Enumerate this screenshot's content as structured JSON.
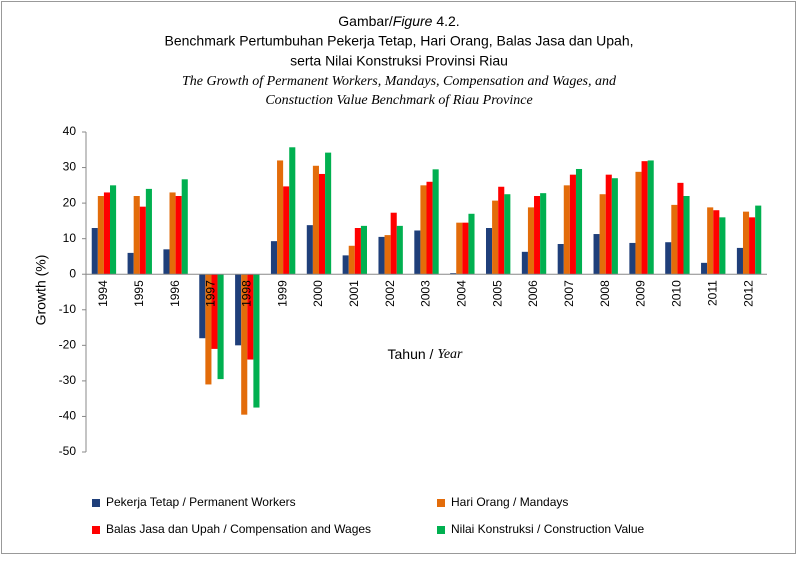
{
  "chart_data": {
    "type": "bar",
    "title_parts": [
      "Gambar/",
      "Figure",
      " 4.2."
    ],
    "title_line2": "Benchmark Pertumbuhan Pekerja Tetap, Hari Orang, Balas Jasa dan Upah,",
    "title_line3": "serta Nilai Konstruksi Provinsi Riau",
    "subtitle_line1": "The Growth of Permanent Workers, Mandays, Compensation and Wages, and",
    "subtitle_line2": "Constuction Value Benchmark of Riau Province",
    "x_label_parts": [
      "Tahun / ",
      "Year"
    ],
    "y_label": "Growth (%)",
    "categories": [
      "1994",
      "1995",
      "1996",
      "1997",
      "1998",
      "1999",
      "2000",
      "2001",
      "2002",
      "2003",
      "2004",
      "2005",
      "2006",
      "2007",
      "2008",
      "2009",
      "2010",
      "2011",
      "2012"
    ],
    "series": [
      {
        "name": "Pekerja Tetap / Permanent Workers",
        "color": "#1f3f7a",
        "values": [
          13,
          6,
          7,
          -18,
          -20,
          9.3,
          13.8,
          5.3,
          10.5,
          12.3,
          0.3,
          13,
          6.3,
          8.5,
          11.3,
          8.8,
          9,
          3.2,
          7.4
        ]
      },
      {
        "name": "Hari Orang / Mandays",
        "color": "#e36c0a",
        "values": [
          22,
          22,
          23,
          -31,
          -39.5,
          32,
          30.5,
          8,
          11,
          25,
          14.5,
          20.7,
          18.8,
          25,
          22.5,
          28.8,
          19.5,
          18.8,
          17.6
        ]
      },
      {
        "name": "Balas Jasa dan Upah / Compensation and Wages",
        "color": "#ff0000",
        "values": [
          23,
          19,
          22,
          -21,
          -24,
          24.7,
          28.2,
          13,
          17.3,
          26,
          14.5,
          24.6,
          22,
          28,
          28,
          31.8,
          25.7,
          18,
          16
        ]
      },
      {
        "name": "Nilai Konstruksi / Construction Value",
        "color": "#00b050",
        "values": [
          25,
          24,
          26.7,
          -29.5,
          -37.5,
          35.7,
          34.2,
          13.6,
          13.6,
          29.5,
          17,
          22.5,
          22.8,
          29.6,
          27,
          32,
          22,
          16,
          19.3
        ]
      }
    ],
    "ylim": [
      -50,
      40
    ],
    "yticks": [
      -50,
      -40,
      -30,
      -20,
      -10,
      0,
      10,
      20,
      30,
      40
    ],
    "grid": false,
    "legend": "bottom"
  }
}
